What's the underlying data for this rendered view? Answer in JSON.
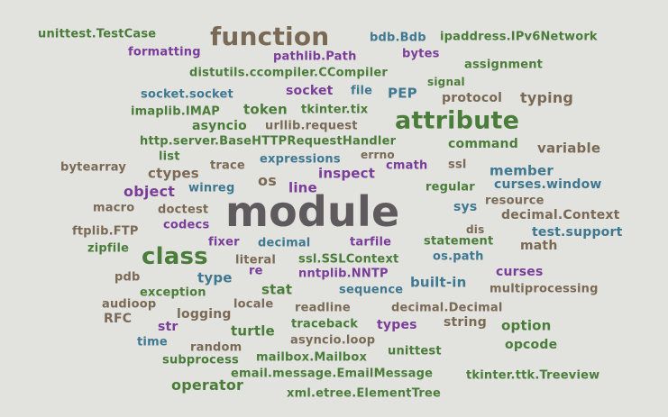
{
  "palette": {
    "green": "#4a7c3a",
    "blue": "#3f7891",
    "purple": "#7a3d9a",
    "brown": "#7a6a55",
    "gray": "#5f5a5d"
  },
  "words": [
    {
      "text": "unittest.TestCase",
      "c": "g",
      "size": 13
    },
    {
      "text": "function",
      "c": "n",
      "size": 28
    },
    {
      "text": "bdb.Bdb",
      "c": "b",
      "size": 13
    },
    {
      "text": "ipaddress.IPv6Network",
      "c": "g",
      "size": 13
    },
    {
      "text": "formatting",
      "c": "p",
      "size": 13
    },
    {
      "text": "pathlib.Path",
      "c": "p",
      "size": 13
    },
    {
      "text": "bytes",
      "c": "p",
      "size": 13
    },
    {
      "text": "assignment",
      "c": "g",
      "size": 13
    },
    {
      "text": "distutils.ccompiler.CCompiler",
      "c": "g",
      "size": 13
    },
    {
      "text": "signal",
      "c": "g",
      "size": 12
    },
    {
      "text": "socket.socket",
      "c": "b",
      "size": 13
    },
    {
      "text": "socket",
      "c": "p",
      "size": 14
    },
    {
      "text": "file",
      "c": "b",
      "size": 13
    },
    {
      "text": "PEP",
      "c": "b",
      "size": 15
    },
    {
      "text": "protocol",
      "c": "n",
      "size": 14
    },
    {
      "text": "typing",
      "c": "n",
      "size": 16
    },
    {
      "text": "imaplib.IMAP",
      "c": "g",
      "size": 13
    },
    {
      "text": "token",
      "c": "g",
      "size": 15
    },
    {
      "text": "tkinter.tix",
      "c": "g",
      "size": 13
    },
    {
      "text": "attribute",
      "c": "g",
      "size": 27
    },
    {
      "text": "asyncio",
      "c": "g",
      "size": 14
    },
    {
      "text": "urllib.request",
      "c": "n",
      "size": 13
    },
    {
      "text": "http.server.BaseHTTPRequestHandler",
      "c": "g",
      "size": 13
    },
    {
      "text": "command",
      "c": "g",
      "size": 14
    },
    {
      "text": "variable",
      "c": "n",
      "size": 15
    },
    {
      "text": "list",
      "c": "g",
      "size": 13
    },
    {
      "text": "expressions",
      "c": "b",
      "size": 13
    },
    {
      "text": "errno",
      "c": "n",
      "size": 12
    },
    {
      "text": "bytearray",
      "c": "n",
      "size": 13
    },
    {
      "text": "ctypes",
      "c": "n",
      "size": 15
    },
    {
      "text": "trace",
      "c": "n",
      "size": 13
    },
    {
      "text": "inspect",
      "c": "p",
      "size": 15
    },
    {
      "text": "cmath",
      "c": "p",
      "size": 13
    },
    {
      "text": "ssl",
      "c": "n",
      "size": 13
    },
    {
      "text": "member",
      "c": "b",
      "size": 15
    },
    {
      "text": "os",
      "c": "n",
      "size": 16
    },
    {
      "text": "curses.window",
      "c": "b",
      "size": 14
    },
    {
      "text": "object",
      "c": "p",
      "size": 16
    },
    {
      "text": "winreg",
      "c": "b",
      "size": 13
    },
    {
      "text": "line",
      "c": "p",
      "size": 15
    },
    {
      "text": "regular",
      "c": "g",
      "size": 13
    },
    {
      "text": "resource",
      "c": "n",
      "size": 13
    },
    {
      "text": "macro",
      "c": "n",
      "size": 13
    },
    {
      "text": "doctest",
      "c": "n",
      "size": 13
    },
    {
      "text": "module",
      "c": "gr",
      "size": 46
    },
    {
      "text": "sys",
      "c": "b",
      "size": 14
    },
    {
      "text": "decimal.Context",
      "c": "n",
      "size": 14
    },
    {
      "text": "codecs",
      "c": "p",
      "size": 13
    },
    {
      "text": "ftplib.FTP",
      "c": "n",
      "size": 13
    },
    {
      "text": "dis",
      "c": "n",
      "size": 12
    },
    {
      "text": "test.support",
      "c": "b",
      "size": 14
    },
    {
      "text": "zipfile",
      "c": "g",
      "size": 13
    },
    {
      "text": "fixer",
      "c": "p",
      "size": 13
    },
    {
      "text": "decimal",
      "c": "b",
      "size": 13
    },
    {
      "text": "tarfile",
      "c": "p",
      "size": 13
    },
    {
      "text": "statement",
      "c": "g",
      "size": 13
    },
    {
      "text": "math",
      "c": "n",
      "size": 14
    },
    {
      "text": "class",
      "c": "g",
      "size": 26
    },
    {
      "text": "literal",
      "c": "n",
      "size": 13
    },
    {
      "text": "ssl.SSLContext",
      "c": "g",
      "size": 13
    },
    {
      "text": "os.path",
      "c": "b",
      "size": 13
    },
    {
      "text": "re",
      "c": "p",
      "size": 13
    },
    {
      "text": "nntplib.NNTP",
      "c": "p",
      "size": 13
    },
    {
      "text": "curses",
      "c": "p",
      "size": 14
    },
    {
      "text": "pdb",
      "c": "n",
      "size": 13
    },
    {
      "text": "type",
      "c": "b",
      "size": 15
    },
    {
      "text": "built-in",
      "c": "b",
      "size": 15
    },
    {
      "text": "stat",
      "c": "g",
      "size": 15
    },
    {
      "text": "sequence",
      "c": "b",
      "size": 13
    },
    {
      "text": "multiprocessing",
      "c": "n",
      "size": 13
    },
    {
      "text": "exception",
      "c": "g",
      "size": 13
    },
    {
      "text": "audioop",
      "c": "n",
      "size": 13
    },
    {
      "text": "locale",
      "c": "n",
      "size": 13
    },
    {
      "text": "readline",
      "c": "n",
      "size": 13
    },
    {
      "text": "decimal.Decimal",
      "c": "n",
      "size": 13
    },
    {
      "text": "RFC",
      "c": "n",
      "size": 14
    },
    {
      "text": "logging",
      "c": "n",
      "size": 14
    },
    {
      "text": "str",
      "c": "p",
      "size": 14
    },
    {
      "text": "traceback",
      "c": "g",
      "size": 13
    },
    {
      "text": "types",
      "c": "p",
      "size": 14
    },
    {
      "text": "string",
      "c": "n",
      "size": 14
    },
    {
      "text": "option",
      "c": "g",
      "size": 15
    },
    {
      "text": "turtle",
      "c": "g",
      "size": 15
    },
    {
      "text": "time",
      "c": "b",
      "size": 13
    },
    {
      "text": "random",
      "c": "n",
      "size": 13
    },
    {
      "text": "asyncio.loop",
      "c": "n",
      "size": 13
    },
    {
      "text": "unittest",
      "c": "g",
      "size": 13
    },
    {
      "text": "opcode",
      "c": "g",
      "size": 14
    },
    {
      "text": "subprocess",
      "c": "g",
      "size": 13
    },
    {
      "text": "mailbox.Mailbox",
      "c": "g",
      "size": 13
    },
    {
      "text": "email.message.EmailMessage",
      "c": "g",
      "size": 13
    },
    {
      "text": "tkinter.ttk.Treeview",
      "c": "g",
      "size": 13
    },
    {
      "text": "operator",
      "c": "g",
      "size": 16
    },
    {
      "text": "xml.etree.ElementTree",
      "c": "g",
      "size": 13
    }
  ]
}
